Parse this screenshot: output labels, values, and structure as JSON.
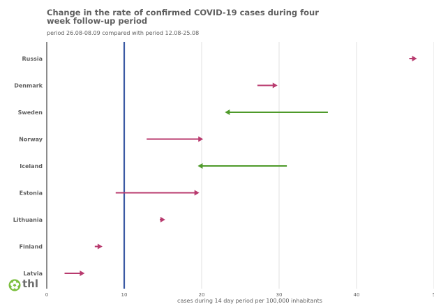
{
  "title": "Change in the rate of confirmed COVID-19 cases during four week follow-up period",
  "subtitle": "period 26.08-08.09 compared with period 12.08-25.08",
  "logo_text": "thl",
  "colors": {
    "increase": "#b83a6e",
    "decrease": "#4e9a2a",
    "reference_line": "#3b5aa3",
    "grid": "#e2e2e2",
    "axis": "#666666",
    "text": "#5f5f5f"
  },
  "chart_data": {
    "type": "arrow-dot",
    "title": "Change in the rate of confirmed COVID-19 cases during four week follow-up period",
    "subtitle": "period 26.08-08.09 compared with period 12.08-25.08",
    "xlabel": "cases during 14 day period per 100,000 inhabitants",
    "xlim": [
      0,
      50
    ],
    "xticks": [
      "0",
      "10",
      "20",
      "30",
      "40",
      "5"
    ],
    "reference_line": 10,
    "grid": true,
    "categories": [
      "Russia",
      "Denmark",
      "Sweden",
      "Norway",
      "Iceland",
      "Estonia",
      "Lithuania",
      "Finland",
      "Latvia"
    ],
    "series": [
      {
        "country": "Russia",
        "from": 46.8,
        "to": 47.8
      },
      {
        "country": "Denmark",
        "from": 27.2,
        "to": 29.8
      },
      {
        "country": "Sweden",
        "from": 36.3,
        "to": 23.0
      },
      {
        "country": "Norway",
        "from": 12.9,
        "to": 20.2
      },
      {
        "country": "Iceland",
        "from": 31.0,
        "to": 19.5
      },
      {
        "country": "Estonia",
        "from": 8.9,
        "to": 19.7
      },
      {
        "country": "Lithuania",
        "from": 14.6,
        "to": 15.3
      },
      {
        "country": "Finland",
        "from": 6.2,
        "to": 7.2
      },
      {
        "country": "Latvia",
        "from": 2.3,
        "to": 4.9
      }
    ]
  }
}
